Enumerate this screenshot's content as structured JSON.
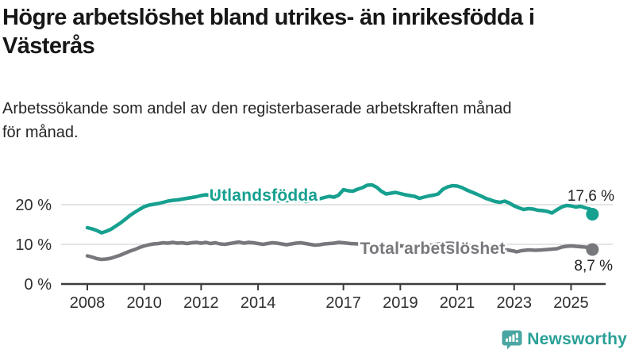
{
  "header": {
    "title_line1": "Högre arbetslöshet bland utrikes- än inrikesfödda i",
    "title_line2": "Västerås",
    "subtitle_line1": "Arbetssökande som andel av den registerbaserade arbetskraften månad",
    "subtitle_line2": "för månad."
  },
  "chart_data": {
    "type": "line",
    "title": "Högre arbetslöshet bland utrikes- än inrikesfödda i Västerås",
    "subtitle": "Arbetssökande som andel av den registerbaserade arbetskraften månad för månad.",
    "grid": "horizontal",
    "legend_position": "inline-labels",
    "x_range": [
      2007.6,
      2026.2
    ],
    "ylim": [
      0,
      26
    ],
    "colors": {
      "accent_teal": "#16a08f",
      "series_gray": "#77787c",
      "axis": "#3c3c3c",
      "gridline": "#dcdcdc",
      "tick_text": "#2e2e2e",
      "end_label_text": "#1f1f1f"
    },
    "x_axis": {
      "ticks": [
        2008,
        2010,
        2012,
        2014,
        2017,
        2019,
        2021,
        2023,
        2025
      ]
    },
    "y_axis": {
      "ticks": [
        0,
        10,
        20
      ],
      "tick_labels": [
        "0 %",
        "10 %",
        "20 %"
      ]
    },
    "series": [
      {
        "name": "Utlandsfödda",
        "color": "#16a08f",
        "end_label": "17,6 %",
        "points": [
          [
            2008.0,
            14.2
          ],
          [
            2008.17,
            13.9
          ],
          [
            2008.33,
            13.5
          ],
          [
            2008.5,
            12.9
          ],
          [
            2008.67,
            13.3
          ],
          [
            2008.83,
            13.8
          ],
          [
            2009.0,
            14.6
          ],
          [
            2009.17,
            15.4
          ],
          [
            2009.33,
            16.3
          ],
          [
            2009.5,
            17.3
          ],
          [
            2009.67,
            18.1
          ],
          [
            2009.83,
            18.8
          ],
          [
            2010.0,
            19.5
          ],
          [
            2010.17,
            19.9
          ],
          [
            2010.33,
            20.1
          ],
          [
            2010.5,
            20.3
          ],
          [
            2010.67,
            20.6
          ],
          [
            2010.83,
            20.9
          ],
          [
            2011.0,
            21.1
          ],
          [
            2011.17,
            21.2
          ],
          [
            2011.33,
            21.4
          ],
          [
            2011.5,
            21.6
          ],
          [
            2011.67,
            21.8
          ],
          [
            2011.83,
            22.0
          ],
          [
            2012.0,
            22.3
          ],
          [
            2012.17,
            22.5
          ],
          [
            2012.33,
            22.3
          ],
          [
            2012.5,
            22.6
          ],
          [
            2012.67,
            22.5
          ],
          [
            2012.83,
            22.4
          ],
          [
            2013.0,
            22.6
          ],
          [
            2013.17,
            22.7
          ],
          [
            2013.33,
            22.9
          ],
          [
            2013.5,
            22.7
          ],
          [
            2013.67,
            22.9
          ],
          [
            2013.83,
            22.8
          ],
          [
            2014.0,
            22.6
          ],
          [
            2014.17,
            22.3
          ],
          [
            2014.33,
            21.8
          ],
          [
            2014.5,
            21.2
          ],
          [
            2014.67,
            20.9
          ],
          [
            2014.83,
            21.1
          ],
          [
            2015.0,
            21.0
          ],
          [
            2015.17,
            21.2
          ],
          [
            2015.33,
            20.9
          ],
          [
            2015.5,
            21.1
          ],
          [
            2015.67,
            20.8
          ],
          [
            2015.83,
            21.0
          ],
          [
            2016.0,
            21.2
          ],
          [
            2016.17,
            21.5
          ],
          [
            2016.33,
            21.8
          ],
          [
            2016.5,
            22.1
          ],
          [
            2016.67,
            21.9
          ],
          [
            2016.83,
            22.4
          ],
          [
            2017.0,
            23.8
          ],
          [
            2017.17,
            23.5
          ],
          [
            2017.33,
            23.4
          ],
          [
            2017.5,
            23.9
          ],
          [
            2017.67,
            24.3
          ],
          [
            2017.83,
            24.9
          ],
          [
            2018.0,
            25.0
          ],
          [
            2018.17,
            24.4
          ],
          [
            2018.33,
            23.4
          ],
          [
            2018.5,
            22.7
          ],
          [
            2018.67,
            22.9
          ],
          [
            2018.83,
            23.1
          ],
          [
            2019.0,
            22.8
          ],
          [
            2019.17,
            22.5
          ],
          [
            2019.33,
            22.3
          ],
          [
            2019.5,
            22.1
          ],
          [
            2019.67,
            21.6
          ],
          [
            2019.83,
            21.9
          ],
          [
            2020.0,
            22.2
          ],
          [
            2020.17,
            22.4
          ],
          [
            2020.33,
            22.7
          ],
          [
            2020.5,
            23.9
          ],
          [
            2020.67,
            24.5
          ],
          [
            2020.83,
            24.8
          ],
          [
            2021.0,
            24.7
          ],
          [
            2021.17,
            24.3
          ],
          [
            2021.33,
            23.7
          ],
          [
            2021.5,
            23.2
          ],
          [
            2021.67,
            22.7
          ],
          [
            2021.83,
            22.2
          ],
          [
            2022.0,
            21.6
          ],
          [
            2022.17,
            21.2
          ],
          [
            2022.33,
            20.8
          ],
          [
            2022.5,
            20.6
          ],
          [
            2022.67,
            20.9
          ],
          [
            2022.83,
            20.4
          ],
          [
            2023.0,
            19.7
          ],
          [
            2023.17,
            19.2
          ],
          [
            2023.33,
            18.8
          ],
          [
            2023.5,
            19.0
          ],
          [
            2023.67,
            18.9
          ],
          [
            2023.83,
            18.6
          ],
          [
            2024.0,
            18.5
          ],
          [
            2024.17,
            18.3
          ],
          [
            2024.33,
            17.9
          ],
          [
            2024.5,
            18.7
          ],
          [
            2024.67,
            19.4
          ],
          [
            2024.83,
            19.8
          ],
          [
            2025.0,
            19.7
          ],
          [
            2025.17,
            19.4
          ],
          [
            2025.33,
            19.6
          ],
          [
            2025.5,
            19.2
          ],
          [
            2025.67,
            18.9
          ],
          [
            2025.75,
            17.6
          ]
        ]
      },
      {
        "name": "Total arbetslöshet",
        "color": "#77787c",
        "end_label": "8,7 %",
        "points": [
          [
            2008.0,
            7.1
          ],
          [
            2008.17,
            6.8
          ],
          [
            2008.33,
            6.4
          ],
          [
            2008.5,
            6.2
          ],
          [
            2008.67,
            6.3
          ],
          [
            2008.83,
            6.5
          ],
          [
            2009.0,
            6.9
          ],
          [
            2009.17,
            7.3
          ],
          [
            2009.33,
            7.8
          ],
          [
            2009.5,
            8.3
          ],
          [
            2009.67,
            8.7
          ],
          [
            2009.83,
            9.2
          ],
          [
            2010.0,
            9.6
          ],
          [
            2010.17,
            9.9
          ],
          [
            2010.33,
            10.1
          ],
          [
            2010.5,
            10.2
          ],
          [
            2010.67,
            10.4
          ],
          [
            2010.83,
            10.3
          ],
          [
            2011.0,
            10.5
          ],
          [
            2011.17,
            10.3
          ],
          [
            2011.33,
            10.4
          ],
          [
            2011.5,
            10.2
          ],
          [
            2011.67,
            10.4
          ],
          [
            2011.83,
            10.5
          ],
          [
            2012.0,
            10.3
          ],
          [
            2012.17,
            10.5
          ],
          [
            2012.33,
            10.2
          ],
          [
            2012.5,
            10.4
          ],
          [
            2012.67,
            10.1
          ],
          [
            2012.83,
            10.0
          ],
          [
            2013.0,
            10.2
          ],
          [
            2013.17,
            10.4
          ],
          [
            2013.33,
            10.6
          ],
          [
            2013.5,
            10.3
          ],
          [
            2013.67,
            10.5
          ],
          [
            2013.83,
            10.4
          ],
          [
            2014.0,
            10.2
          ],
          [
            2014.17,
            10.0
          ],
          [
            2014.33,
            10.2
          ],
          [
            2014.5,
            10.4
          ],
          [
            2014.67,
            10.3
          ],
          [
            2014.83,
            10.1
          ],
          [
            2015.0,
            9.9
          ],
          [
            2015.17,
            10.1
          ],
          [
            2015.33,
            10.3
          ],
          [
            2015.5,
            10.4
          ],
          [
            2015.67,
            10.2
          ],
          [
            2015.83,
            10.0
          ],
          [
            2016.0,
            9.8
          ],
          [
            2016.17,
            9.9
          ],
          [
            2016.33,
            10.1
          ],
          [
            2016.5,
            10.2
          ],
          [
            2016.67,
            10.3
          ],
          [
            2016.83,
            10.5
          ],
          [
            2017.0,
            10.4
          ],
          [
            2017.25,
            10.2
          ],
          [
            2017.5,
            10.1
          ],
          [
            2017.75,
            10.0
          ],
          [
            2018.0,
            9.9
          ],
          [
            2018.25,
            9.8
          ],
          [
            2018.5,
            9.7
          ],
          [
            2018.75,
            9.6
          ],
          [
            2019.0,
            9.6
          ],
          [
            2019.25,
            9.5
          ],
          [
            2019.5,
            9.4
          ],
          [
            2019.75,
            9.5
          ],
          [
            2020.0,
            9.7
          ],
          [
            2020.25,
            10.0
          ],
          [
            2020.5,
            10.2
          ],
          [
            2020.75,
            10.3
          ],
          [
            2021.0,
            10.1
          ],
          [
            2021.25,
            9.9
          ],
          [
            2021.5,
            9.5
          ],
          [
            2021.75,
            9.2
          ],
          [
            2022.0,
            9.0
          ],
          [
            2022.25,
            8.9
          ],
          [
            2022.5,
            8.7
          ],
          [
            2022.75,
            8.6
          ],
          [
            2023.0,
            8.3
          ],
          [
            2023.08,
            8.1
          ],
          [
            2023.25,
            8.4
          ],
          [
            2023.5,
            8.6
          ],
          [
            2023.75,
            8.5
          ],
          [
            2024.0,
            8.6
          ],
          [
            2024.17,
            8.7
          ],
          [
            2024.33,
            8.8
          ],
          [
            2024.5,
            8.9
          ],
          [
            2024.67,
            9.3
          ],
          [
            2024.83,
            9.5
          ],
          [
            2025.0,
            9.6
          ],
          [
            2025.17,
            9.5
          ],
          [
            2025.33,
            9.4
          ],
          [
            2025.5,
            9.3
          ],
          [
            2025.67,
            9.2
          ],
          [
            2025.75,
            8.7
          ]
        ]
      }
    ]
  },
  "footer": {
    "brand": "Newsworthy",
    "brand_color": "#2aa098",
    "brand_icon": "newsworthy-bubble-barchart-icon"
  }
}
